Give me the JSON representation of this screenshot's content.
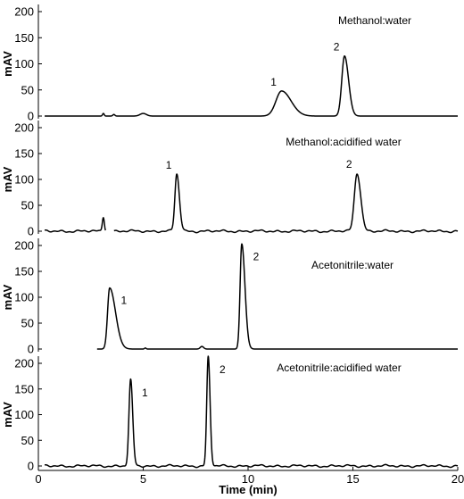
{
  "chart_data": {
    "type": "line",
    "xlabel": "Time (min)",
    "x_ticks": [
      0,
      5,
      10,
      15,
      20
    ],
    "xlim": [
      0,
      20
    ],
    "grid": false,
    "panels": [
      {
        "title": "Methanol:water",
        "ylabel": "mAV",
        "ylim": [
          0,
          200
        ],
        "y_ticks": [
          0,
          50,
          100,
          150,
          200
        ],
        "baseline_start": 0.3,
        "baseline_noise": 0,
        "gaps": [],
        "peaks": [
          {
            "label": "",
            "t": 3.1,
            "height": 5,
            "width": 0.04,
            "tail": 0
          },
          {
            "label": "",
            "t": 3.6,
            "height": 3,
            "width": 0.05,
            "tail": 0
          },
          {
            "label": "",
            "t": 5.0,
            "height": 5,
            "width": 0.15,
            "tail": 0
          },
          {
            "label": "1",
            "t": 11.6,
            "height": 48,
            "width": 0.27,
            "tail": 0.2
          },
          {
            "label": "2",
            "t": 14.6,
            "height": 115,
            "width": 0.13,
            "tail": 0.07
          }
        ]
      },
      {
        "title": "Methanol:acidified water",
        "ylabel": "mAV",
        "ylim": [
          0,
          200
        ],
        "y_ticks": [
          0,
          50,
          100,
          150,
          200
        ],
        "baseline_start": 0.3,
        "baseline_noise": 2.5,
        "gaps": [
          [
            3.2,
            3.6
          ]
        ],
        "peaks": [
          {
            "label": "",
            "t": 3.1,
            "height": 28,
            "width": 0.05,
            "tail": 0
          },
          {
            "label": "1",
            "t": 6.6,
            "height": 110,
            "width": 0.09,
            "tail": 0.04
          },
          {
            "label": "2",
            "t": 15.2,
            "height": 112,
            "width": 0.13,
            "tail": 0.05
          }
        ]
      },
      {
        "title": "Acetonitrile:water",
        "ylabel": "mAV",
        "ylim": [
          0,
          200
        ],
        "y_ticks": [
          0,
          50,
          100,
          150,
          200
        ],
        "baseline_start": 2.8,
        "baseline_noise": 0,
        "gaps": [],
        "peaks": [
          {
            "label": "",
            "t": 5.1,
            "height": 2,
            "width": 0.04,
            "tail": 0
          },
          {
            "label": "",
            "t": 7.8,
            "height": 5,
            "width": 0.08,
            "tail": 0
          },
          {
            "label": "1",
            "t": 3.4,
            "height": 118,
            "width": 0.1,
            "tail": 0.2
          },
          {
            "label": "2",
            "t": 9.7,
            "height": 203,
            "width": 0.08,
            "tail": 0.08
          }
        ]
      },
      {
        "title": "Acetonitrile:acidified water",
        "ylabel": "mAV",
        "ylim": [
          0,
          200
        ],
        "y_ticks": [
          0,
          50,
          100,
          150,
          200
        ],
        "baseline_start": 0.3,
        "baseline_noise": 2.5,
        "gaps": [],
        "peaks": [
          {
            "label": "1",
            "t": 4.4,
            "height": 167,
            "width": 0.08,
            "tail": 0.02
          },
          {
            "label": "2",
            "t": 8.1,
            "height": 212,
            "width": 0.07,
            "tail": 0.02
          }
        ]
      }
    ]
  }
}
